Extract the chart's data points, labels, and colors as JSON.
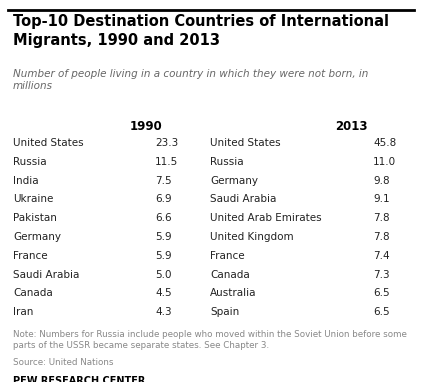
{
  "title": "Top-10 Destination Countries of International\nMigrants, 1990 and 2013",
  "subtitle": "Number of people living in a country in which they were not born, in\nmillions",
  "col1990_header": "1990",
  "col2013_header": "2013",
  "countries_1990": [
    "United States",
    "Russia",
    "India",
    "Ukraine",
    "Pakistan",
    "Germany",
    "France",
    "Saudi Arabia",
    "Canada",
    "Iran"
  ],
  "values_1990": [
    "23.3",
    "11.5",
    "7.5",
    "6.9",
    "6.6",
    "5.9",
    "5.9",
    "5.0",
    "4.5",
    "4.3"
  ],
  "countries_2013": [
    "United States",
    "Russia",
    "Germany",
    "Saudi Arabia",
    "United Arab Emirates",
    "United Kingdom",
    "France",
    "Canada",
    "Australia",
    "Spain"
  ],
  "values_2013": [
    "45.8",
    "11.0",
    "9.8",
    "9.1",
    "7.8",
    "7.8",
    "7.4",
    "7.3",
    "6.5",
    "6.5"
  ],
  "note": "Note: Numbers for Russia include people who moved within the Soviet Union before some\nparts of the USSR became separate states. See Chapter 3.",
  "source": "Source: United Nations",
  "footer": "PEW RESEARCH CENTER",
  "bg_color": "#ffffff",
  "title_color": "#000000",
  "subtitle_color": "#666666",
  "body_color": "#222222",
  "note_color": "#888888",
  "header_color": "#000000",
  "footer_color": "#000000"
}
